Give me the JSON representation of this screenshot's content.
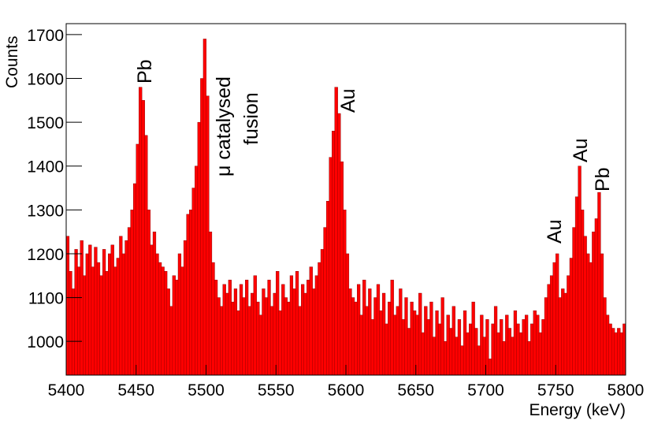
{
  "chart_data": {
    "type": "histogram",
    "x_label": "Energy (keV)",
    "y_label": "Counts",
    "bins": [
      5400,
      5402,
      5404,
      5406,
      5408,
      5410,
      5412,
      5414,
      5416,
      5418,
      5420,
      5422,
      5424,
      5426,
      5428,
      5430,
      5432,
      5434,
      5436,
      5438,
      5440,
      5442,
      5444,
      5446,
      5448,
      5450,
      5452,
      5454,
      5456,
      5458,
      5460,
      5462,
      5464,
      5466,
      5468,
      5470,
      5472,
      5474,
      5476,
      5478,
      5480,
      5482,
      5484,
      5486,
      5488,
      5490,
      5492,
      5494,
      5496,
      5498,
      5500,
      5502,
      5504,
      5506,
      5508,
      5510,
      5512,
      5514,
      5516,
      5518,
      5520,
      5522,
      5524,
      5526,
      5528,
      5530,
      5532,
      5534,
      5536,
      5538,
      5540,
      5542,
      5544,
      5546,
      5548,
      5550,
      5552,
      5554,
      5556,
      5558,
      5560,
      5562,
      5564,
      5566,
      5568,
      5570,
      5572,
      5574,
      5576,
      5578,
      5580,
      5582,
      5584,
      5586,
      5588,
      5590,
      5592,
      5594,
      5596,
      5598,
      5600,
      5602,
      5604,
      5606,
      5608,
      5610,
      5612,
      5614,
      5616,
      5618,
      5620,
      5622,
      5624,
      5626,
      5628,
      5630,
      5632,
      5634,
      5636,
      5638,
      5640,
      5642,
      5644,
      5646,
      5648,
      5650,
      5652,
      5654,
      5656,
      5658,
      5660,
      5662,
      5664,
      5666,
      5668,
      5670,
      5672,
      5674,
      5676,
      5678,
      5680,
      5682,
      5684,
      5686,
      5688,
      5690,
      5692,
      5694,
      5696,
      5698,
      5700,
      5702,
      5704,
      5706,
      5708,
      5710,
      5712,
      5714,
      5716,
      5718,
      5720,
      5722,
      5724,
      5726,
      5728,
      5730,
      5732,
      5734,
      5736,
      5738,
      5740,
      5742,
      5744,
      5746,
      5748,
      5750,
      5752,
      5754,
      5756,
      5758,
      5760,
      5762,
      5764,
      5766,
      5768,
      5770,
      5772,
      5774,
      5776,
      5778,
      5780,
      5782,
      5784,
      5786,
      5788,
      5790,
      5792,
      5794,
      5796,
      5798,
      5800
    ],
    "values": [
      1240,
      1160,
      1120,
      1210,
      1170,
      1230,
      1150,
      1200,
      1220,
      1170,
      1215,
      1180,
      1150,
      1210,
      1160,
      1200,
      1220,
      1170,
      1190,
      1240,
      1200,
      1230,
      1260,
      1300,
      1360,
      1450,
      1580,
      1550,
      1470,
      1300,
      1220,
      1250,
      1200,
      1180,
      1170,
      1160,
      1120,
      1080,
      1150,
      1140,
      1200,
      1170,
      1230,
      1290,
      1300,
      1350,
      1400,
      1500,
      1600,
      1690,
      1560,
      1250,
      1180,
      1140,
      1100,
      1080,
      1130,
      1110,
      1140,
      1090,
      1120,
      1070,
      1130,
      1100,
      1140,
      1080,
      1110,
      1150,
      1090,
      1060,
      1120,
      1100,
      1140,
      1080,
      1110,
      1160,
      1070,
      1130,
      1100,
      1090,
      1150,
      1120,
      1160,
      1080,
      1130,
      1110,
      1140,
      1170,
      1120,
      1150,
      1180,
      1210,
      1260,
      1320,
      1420,
      1480,
      1580,
      1520,
      1410,
      1300,
      1200,
      1120,
      1100,
      1090,
      1130,
      1060,
      1140,
      1080,
      1120,
      1050,
      1100,
      1130,
      1070,
      1110,
      1040,
      1090,
      1140,
      1060,
      1080,
      1120,
      1050,
      1100,
      1030,
      1090,
      1070,
      1060,
      1110,
      1020,
      1080,
      1050,
      1090,
      1010,
      1070,
      1040,
      1100,
      1000,
      1060,
      1030,
      1080,
      1010,
      1050,
      990,
      1070,
      1020,
      1040,
      1090,
      1030,
      990,
      1060,
      1010,
      1050,
      960,
      1040,
      1080,
      1020,
      1050,
      1000,
      1060,
      1030,
      1010,
      1070,
      1040,
      1020,
      1050,
      1060,
      1000,
      1040,
      1070,
      1060,
      1020,
      1050,
      1100,
      1130,
      1150,
      1180,
      1200,
      1100,
      1120,
      1110,
      1150,
      1190,
      1260,
      1330,
      1400,
      1300,
      1240,
      1200,
      1180,
      1250,
      1280,
      1340,
      1200,
      1100,
      1060,
      1040,
      1030,
      1020,
      1030,
      1020,
      1040
    ],
    "color": "#ff0000",
    "xlim": [
      5400,
      5800
    ],
    "xticks": [
      5400,
      5450,
      5500,
      5550,
      5600,
      5650,
      5700,
      5750,
      5800
    ],
    "ylim": [
      923,
      1725
    ],
    "yticks": [
      1000,
      1100,
      1200,
      1300,
      1400,
      1500,
      1600,
      1700
    ],
    "grid": false,
    "annotations": [
      "Pb",
      "μ catalysed",
      "fusion",
      "Au",
      "Au",
      "Au",
      "Pb"
    ]
  }
}
